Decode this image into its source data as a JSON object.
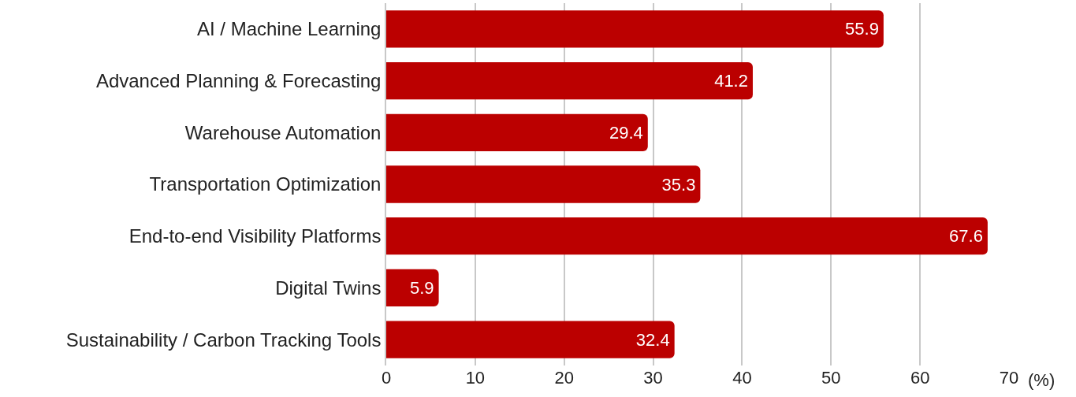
{
  "chart_data": {
    "type": "bar",
    "orientation": "horizontal",
    "xlabel": "(%)",
    "categories": [
      "AI / Machine Learning",
      "Advanced Planning & Forecasting",
      "Warehouse Automation",
      "Transportation Optimization",
      "End-to-end Visibility Platforms",
      "Digital Twins",
      "Sustainability / Carbon Tracking Tools"
    ],
    "values": [
      55.9,
      41.2,
      29.4,
      35.3,
      67.6,
      5.9,
      32.4
    ],
    "color": "#bb0000",
    "xlim": [
      0,
      70
    ],
    "xticks": [
      0,
      10,
      20,
      30,
      40,
      50,
      60,
      70
    ],
    "grid": "x",
    "data_labels": true
  }
}
